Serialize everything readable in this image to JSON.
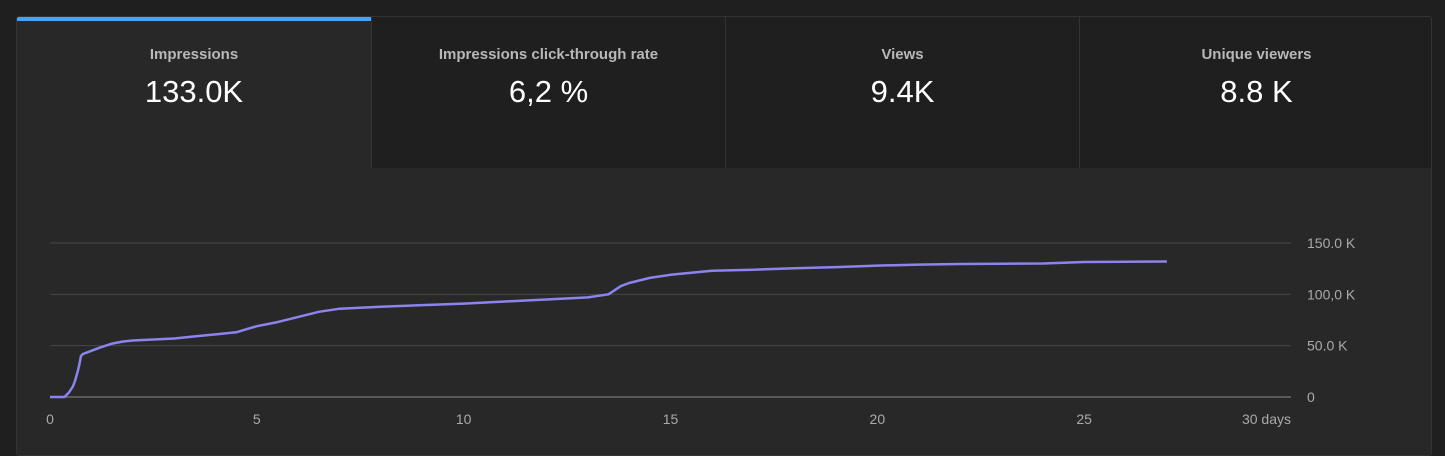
{
  "metrics": [
    {
      "label": "Impressions",
      "value": "133.0K",
      "active": true
    },
    {
      "label": "Impressions click-through rate",
      "value": "6,2 %",
      "active": false
    },
    {
      "label": "Views",
      "value": "9.4K",
      "active": false
    },
    {
      "label": "Unique viewers",
      "value": "8.8 K",
      "active": false
    }
  ],
  "chart_data": {
    "type": "line",
    "series_color": "#8b84ee",
    "accent": "#3ea6ff",
    "grid": true,
    "xlim": [
      0,
      30
    ],
    "ylim": [
      0,
      150000
    ],
    "x_ticks": [
      0,
      5,
      10,
      15,
      20,
      25,
      30
    ],
    "x_tick_labels": [
      "0",
      "5",
      "10",
      "15",
      "20",
      "25",
      "30 days"
    ],
    "y_ticks": [
      0,
      50000,
      100000,
      150000
    ],
    "y_tick_labels": [
      "0",
      "50.0 K",
      "100,0 K",
      "150.0 K"
    ],
    "series": [
      {
        "x": [
          0,
          0.35,
          0.45,
          0.55,
          0.6,
          0.65,
          0.7,
          0.75,
          0.8,
          1.0,
          1.2,
          1.5,
          1.75,
          2.0,
          2.5,
          3.0,
          3.5,
          4.0,
          4.5,
          4.75,
          5.0,
          5.5,
          6.0,
          6.5,
          7.0,
          8.0,
          9.0,
          10.0,
          11.0,
          12.0,
          13.0,
          13.5,
          13.8,
          14.0,
          14.5,
          15.0,
          15.5,
          16.0,
          17.0,
          18.0,
          19.0,
          20.0,
          21.0,
          22.0,
          23.0,
          24.0,
          25.0,
          26.0,
          27.0
        ],
        "y": [
          0,
          0,
          4000,
          10000,
          15000,
          22000,
          30000,
          40000,
          42000,
          45000,
          48000,
          52000,
          54000,
          55000,
          56000,
          57000,
          59000,
          61000,
          63000,
          66000,
          69000,
          73000,
          78000,
          83000,
          86000,
          88000,
          89500,
          91000,
          93000,
          95000,
          97000,
          100000,
          108000,
          111000,
          116000,
          119000,
          121000,
          123000,
          124000,
          125500,
          126500,
          128000,
          129000,
          129500,
          129800,
          130000,
          131500,
          131800,
          132000
        ]
      }
    ]
  }
}
